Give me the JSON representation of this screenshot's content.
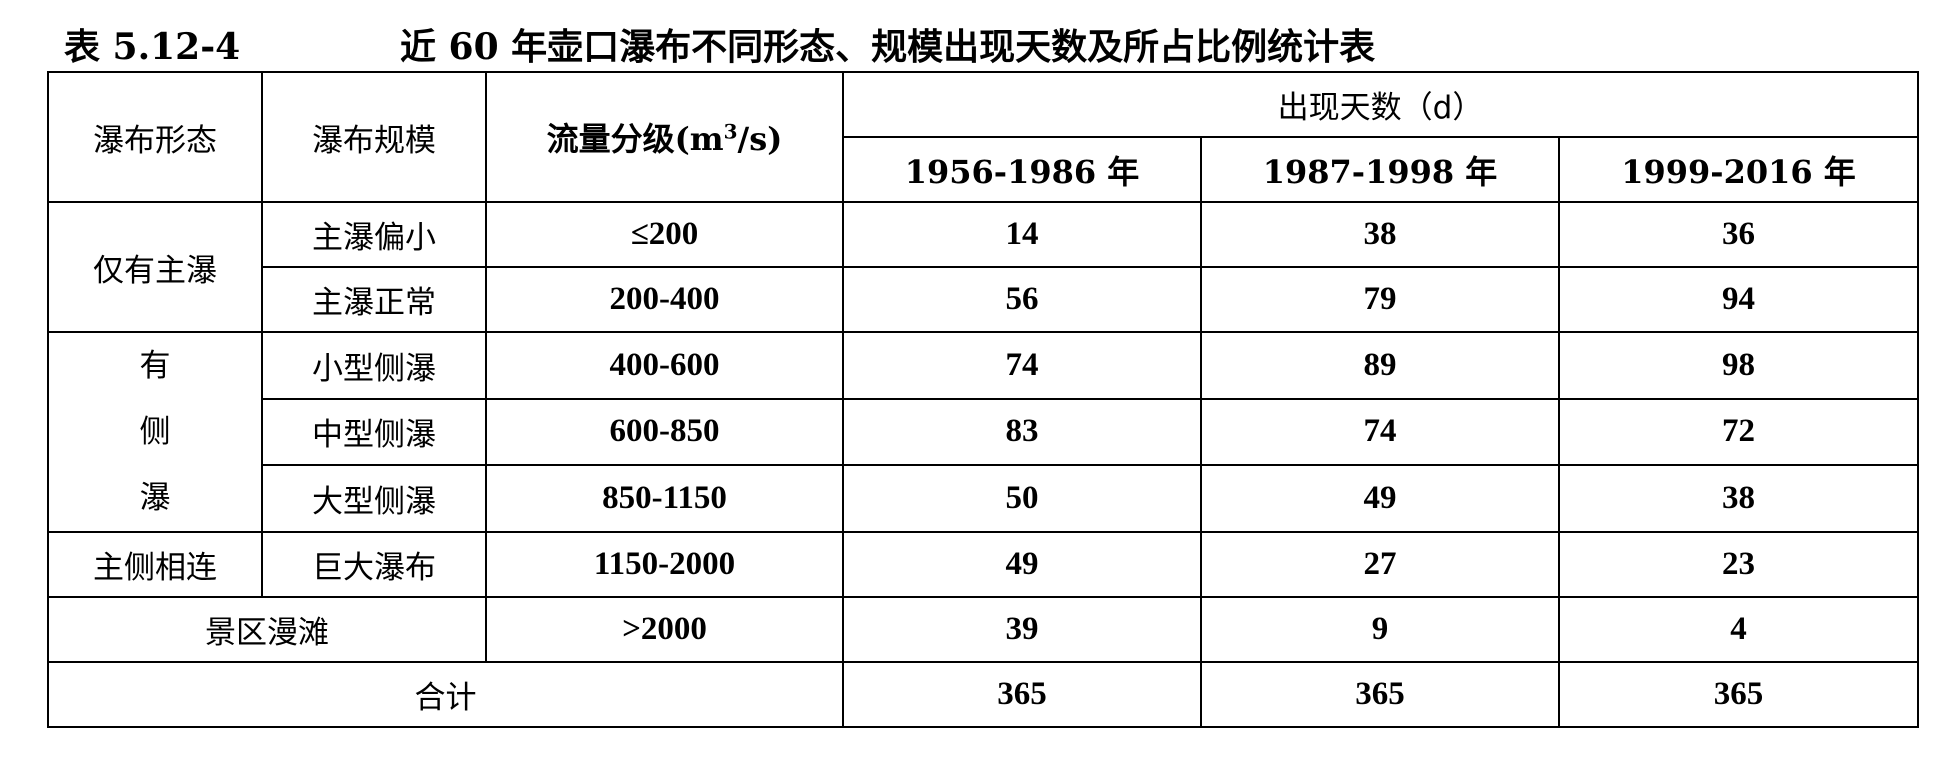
{
  "caption": {
    "number": "表 5.12-4",
    "title": "近 60 年壶口瀑布不同形态、规模出现天数及所占比例统计表"
  },
  "headers": {
    "form": "瀑布形态",
    "scale": "瀑布规模",
    "flow_prefix": "流量分级(m",
    "flow_sup": "3",
    "flow_suffix": "/s)",
    "days": "出现天数（d）",
    "periods": [
      "1956-1986 年",
      "1987-1998 年",
      "1999-2016 年"
    ]
  },
  "groups": {
    "main_only": "仅有主瀑",
    "side_chars": [
      "有",
      "侧",
      "瀑"
    ],
    "connected": "主侧相连",
    "scenic": "景区漫滩",
    "total": "合计"
  },
  "rows": [
    {
      "scale": "主瀑偏小",
      "flow": "≤200",
      "d1": "14",
      "d2": "38",
      "d3": "36"
    },
    {
      "scale": "主瀑正常",
      "flow": "200-400",
      "d1": "56",
      "d2": "79",
      "d3": "94"
    },
    {
      "scale": "小型侧瀑",
      "flow": "400-600",
      "d1": "74",
      "d2": "89",
      "d3": "98"
    },
    {
      "scale": "中型侧瀑",
      "flow": "600-850",
      "d1": "83",
      "d2": "74",
      "d3": "72"
    },
    {
      "scale": "大型侧瀑",
      "flow": "850-1150",
      "d1": "50",
      "d2": "49",
      "d3": "38"
    },
    {
      "scale": "巨大瀑布",
      "flow": "1150-2000",
      "d1": "49",
      "d2": "27",
      "d3": "23"
    },
    {
      "scale": "",
      "flow": ">2000",
      "d1": "39",
      "d2": "9",
      "d3": "4"
    }
  ],
  "totals": {
    "d1": "365",
    "d2": "365",
    "d3": "365"
  }
}
